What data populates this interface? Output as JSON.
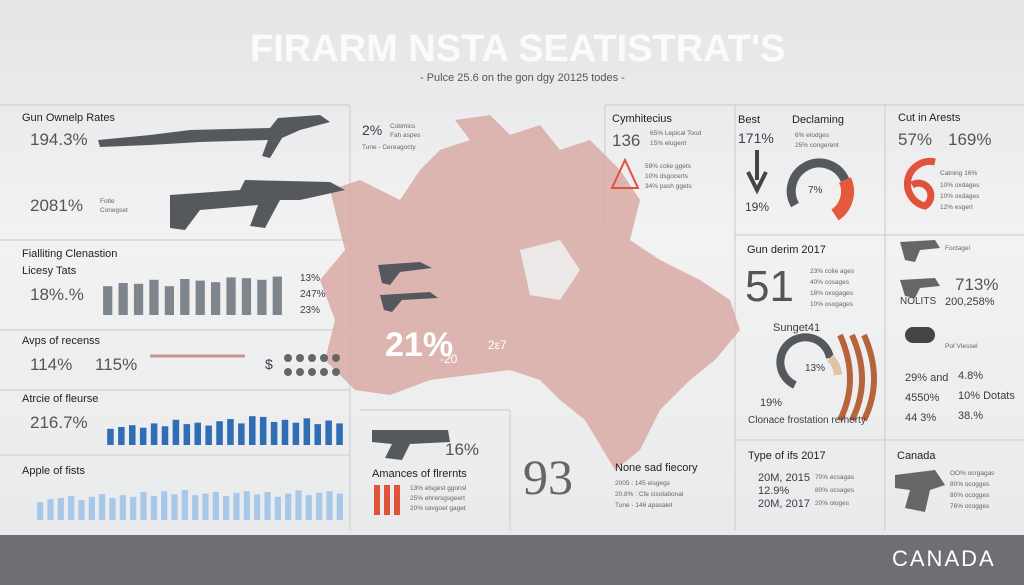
{
  "header": {
    "title": "FIRARM NSTA SEATISTRAT'S",
    "subtitle": "- Pulce 25.6 on the gon dgy 20125 todes -"
  },
  "ownership": {
    "title": "Gun Ownelp Rates",
    "value1": "194.3%",
    "value2": "2081%",
    "legend": [
      "Fotle",
      "Conegset"
    ]
  },
  "licensing": {
    "title": "Fialliting Clenastion",
    "subtitle": "Licesy Tats",
    "value": "18%.%",
    "color": "#7f858d",
    "bars": [
      72,
      80,
      78,
      88,
      72,
      90,
      86,
      82,
      94,
      92,
      88,
      96
    ],
    "legend": [
      "13%",
      "247%",
      "23%"
    ]
  },
  "recess": {
    "title": "Avps of recenss",
    "values": [
      "114%",
      "115%"
    ],
    "symbol": "$"
  },
  "force": {
    "title": "Atrcie of fleurse",
    "value": "216.7%",
    "color": "#2f6db5",
    "bars": [
      45,
      50,
      55,
      48,
      60,
      52,
      70,
      58,
      62,
      54,
      66,
      72,
      60,
      80,
      78,
      64,
      70,
      62,
      74,
      58,
      68,
      60
    ]
  },
  "fists": {
    "title": "Apple of fists",
    "color": "#a8c8ea",
    "bars": [
      45,
      52,
      55,
      60,
      50,
      58,
      65,
      55,
      62,
      58,
      70,
      60,
      72,
      64,
      75,
      62,
      66,
      70,
      60,
      68,
      72,
      64,
      70,
      58,
      66,
      74,
      62,
      68,
      72,
      66
    ]
  },
  "map": {
    "note": [
      "2%",
      "Cobmics",
      "Fah aspes",
      "Tune - Cereagocty"
    ],
    "big": "21%",
    "sub": "-20",
    "other": "2ε7"
  },
  "amances": {
    "value": "16%",
    "title": "Amances of flrernts",
    "color": "#e0523a",
    "bars": [
      100,
      100,
      100
    ],
    "items": [
      "13% elsgest ggonsl",
      "25% ehrersgsgeert",
      "20% cevgoet gaget"
    ]
  },
  "history": {
    "big": "93",
    "title": "None sad fiecory",
    "items": [
      "2005 : 145 eisgegs",
      "20.8% : Cfe cisotational",
      "Tune - 146 apasalet"
    ]
  },
  "cymhitecius": {
    "title": "Cymhitecius",
    "value": "136",
    "notes": [
      "65% Lepical Tood",
      "15% elugent"
    ],
    "items": [
      "59% colie ggets",
      "10% dsgocerts",
      "34% pash ggets"
    ]
  },
  "best": {
    "title": "Best",
    "value1": "171%",
    "value2": "19%"
  },
  "declaming": {
    "title": "Declaming",
    "notes": [
      "6% elodges",
      "25% congerent"
    ],
    "gauge": "7%"
  },
  "arrests": {
    "title": "Cut in Arests",
    "values": [
      "57%",
      "169%"
    ],
    "big": "6",
    "items": [
      "Catning 16%",
      "10% oxdages",
      "10% oxdages",
      "12% esgert"
    ]
  },
  "gunderim": {
    "title": "Gun derim 2017",
    "big": "51",
    "items": [
      "23% colie ages",
      "40% cosages",
      "18% oxogages",
      "10% osogages"
    ]
  },
  "sunget": {
    "title": "Sunget41",
    "donut": "13%",
    "value": "19%",
    "caption": "Clonace frostation rerherty"
  },
  "weapons": {
    "label1": "Foctagel",
    "value1": "713%",
    "label2": "NOLITS",
    "value2": "200,258%",
    "label3": "Pof Vlessel",
    "rows": [
      [
        "29% and",
        "4.8%"
      ],
      [
        "4550%",
        "10% Dotats"
      ],
      [
        "44 3%",
        "38.%"
      ]
    ]
  },
  "types": {
    "title": "Type of ifs 2017",
    "rows": [
      [
        "20M, 2015",
        "70% ecsagas"
      ],
      [
        "12.9%",
        "80% ocsages"
      ],
      [
        "20M, 2017",
        "20% ologes"
      ]
    ]
  },
  "canada": {
    "title": "Canada",
    "items": [
      "OO% ocrgagas",
      "80% ocogges",
      "80% ocogges",
      "76% ocogges"
    ]
  },
  "footer": {
    "label": "CANADA"
  }
}
